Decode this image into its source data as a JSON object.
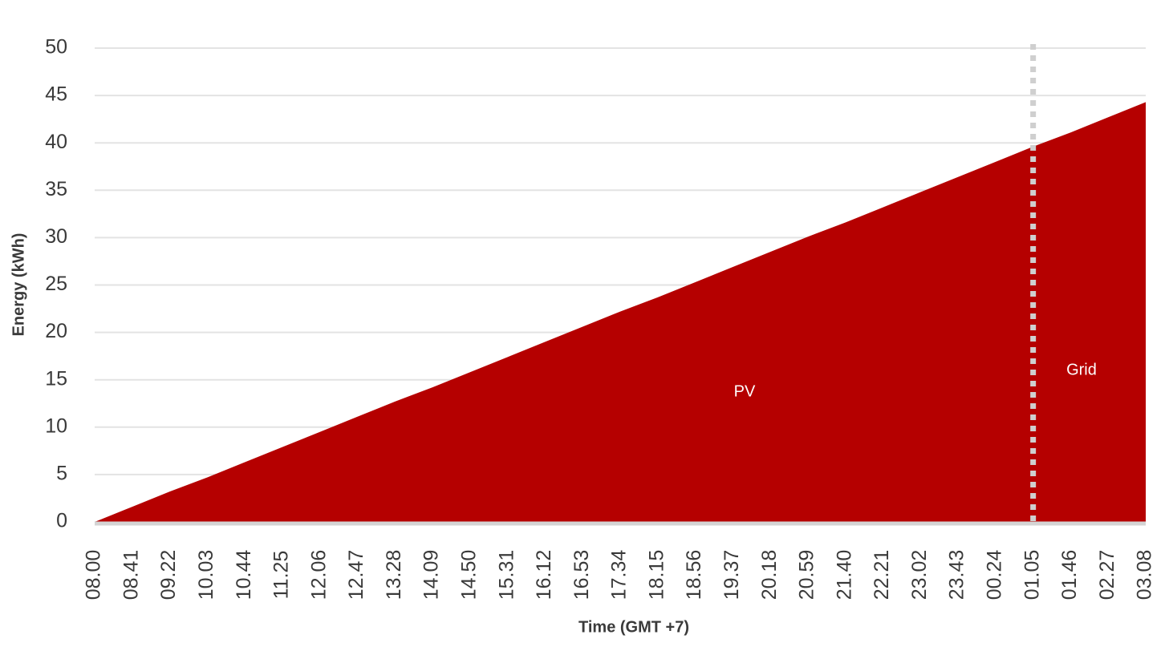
{
  "chart_data": {
    "type": "area",
    "y_label": "Energy (kWh)",
    "x_label": "Time (GMT +7)",
    "categories": [
      "08.00",
      "08.41",
      "09.22",
      "10.03",
      "10.44",
      "11.25",
      "12.06",
      "12.47",
      "13.28",
      "14.09",
      "14.50",
      "15.31",
      "16.12",
      "16.53",
      "17.34",
      "18.15",
      "18.56",
      "19.37",
      "20.18",
      "20.59",
      "21.40",
      "22.21",
      "23.02",
      "23.43",
      "00.24",
      "01.05",
      "01.46",
      "02.27",
      "03.08"
    ],
    "values": [
      0,
      1.6,
      3.2,
      4.7,
      6.3,
      7.9,
      9.5,
      11.1,
      12.7,
      14.2,
      15.8,
      17.4,
      19.0,
      20.6,
      22.2,
      23.7,
      25.3,
      26.9,
      28.5,
      30.1,
      31.6,
      33.2,
      34.8,
      36.4,
      38.0,
      39.6,
      41.1,
      42.7,
      44.3
    ],
    "color": "#b50000",
    "ylim": [
      0,
      50
    ],
    "yticks": [
      0,
      5,
      10,
      15,
      20,
      25,
      30,
      35,
      40,
      45,
      50
    ],
    "grid": true,
    "divider_at": "01.05",
    "annotations": [
      "PV",
      "Grid"
    ]
  }
}
